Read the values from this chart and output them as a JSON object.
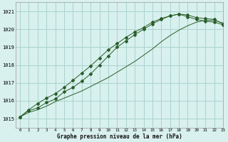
{
  "xlabel": "Graphe pression niveau de la mer (hPa)",
  "ylim": [
    1014.5,
    1021.5
  ],
  "xlim": [
    -0.5,
    23
  ],
  "yticks": [
    1015,
    1016,
    1017,
    1018,
    1019,
    1020,
    1021
  ],
  "xticks": [
    0,
    1,
    2,
    3,
    4,
    5,
    6,
    7,
    8,
    9,
    10,
    11,
    12,
    13,
    14,
    15,
    16,
    17,
    18,
    19,
    20,
    21,
    22,
    23
  ],
  "background_color": "#d8f0ee",
  "grid_color": "#aad4cc",
  "line_color": "#2a5e2a",
  "series_with_markers": [
    [
      1015.1,
      1015.45,
      1015.6,
      1015.9,
      1016.1,
      1016.5,
      1016.75,
      1017.1,
      1017.5,
      1018.0,
      1018.5,
      1019.0,
      1019.35,
      1019.7,
      1020.0,
      1020.3,
      1020.55,
      1020.75,
      1020.85,
      1020.8,
      1020.65,
      1020.6,
      1020.55,
      1020.3
    ],
    [
      1015.1,
      1015.5,
      1015.85,
      1016.15,
      1016.4,
      1016.75,
      1017.15,
      1017.55,
      1017.95,
      1018.4,
      1018.85,
      1019.2,
      1019.55,
      1019.85,
      1020.1,
      1020.4,
      1020.6,
      1020.75,
      1020.85,
      1020.7,
      1020.55,
      1020.45,
      1020.4,
      1020.25
    ]
  ],
  "series_no_markers": [
    [
      1015.1,
      1015.35,
      1015.5,
      1015.7,
      1015.95,
      1016.15,
      1016.35,
      1016.55,
      1016.8,
      1017.05,
      1017.3,
      1017.6,
      1017.9,
      1018.2,
      1018.55,
      1018.9,
      1019.3,
      1019.65,
      1019.95,
      1020.2,
      1020.4,
      1020.5,
      1020.5,
      1020.35
    ]
  ]
}
